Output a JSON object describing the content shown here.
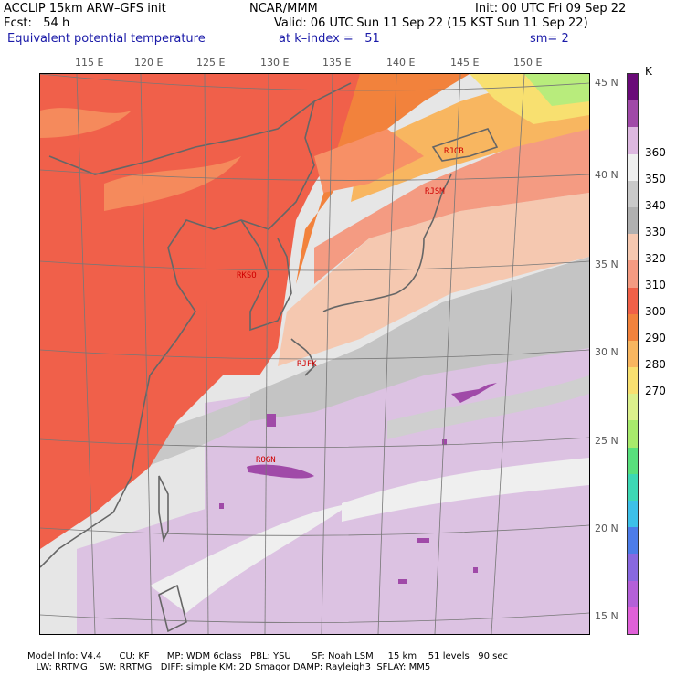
{
  "header": {
    "line1_left": "ACCLIP 15km ARW–GFS init",
    "line1_center": "NCAR/MMM",
    "line1_right": "Init: 00 UTC Fri 09 Sep 22",
    "line2_left": "Fcst:   54 h",
    "line2_right": "Valid: 06 UTC Sun 11 Sep 22 (15 KST Sun 11 Sep 22)",
    "line3_left": "Equivalent potential temperature",
    "line3_center": "at k–index =   51",
    "line3_right": "sm= 2"
  },
  "lon_ticks": [
    "115 E",
    "120 E",
    "125 E",
    "130 E",
    "135 E",
    "140 E",
    "145 E",
    "150 E"
  ],
  "lat_ticks": [
    "45 N",
    "40 N",
    "35 N",
    "30 N",
    "25 N",
    "20 N",
    "15 N"
  ],
  "colorbar": {
    "unit": "K",
    "labels": [
      "360",
      "350",
      "340",
      "330",
      "320",
      "310",
      "300",
      "290",
      "280",
      "270"
    ],
    "colors_top_to_bottom": [
      "#6a0a78",
      "#a04aa8",
      "#ddb8e0",
      "#efefef",
      "#c9c9c9",
      "#b0b0b0",
      "#f5c8b0",
      "#f49b82",
      "#f06048",
      "#f2823c",
      "#f8b660",
      "#f8e070",
      "#dcf08c",
      "#a8ea6c",
      "#58e07c",
      "#3cd8b4",
      "#3cc0e8",
      "#4c7ce8",
      "#8868e0",
      "#b460d8",
      "#e060d8"
    ]
  },
  "stations": [
    "RJCB",
    "RJSM",
    "RKSO",
    "RJFK",
    "ROGN"
  ],
  "footer": {
    "line1": "Model Info: V4.4      CU: KF      MP: WDM 6class   PBL: YSU       SF: Noah LSM     15 km    51 levels   90 sec",
    "line2": "   LW: RRTMG    SW: RRTMG   DIFF: simple KM: 2D Smagor DAMP: Rayleigh3  SFLAY: MM5"
  }
}
